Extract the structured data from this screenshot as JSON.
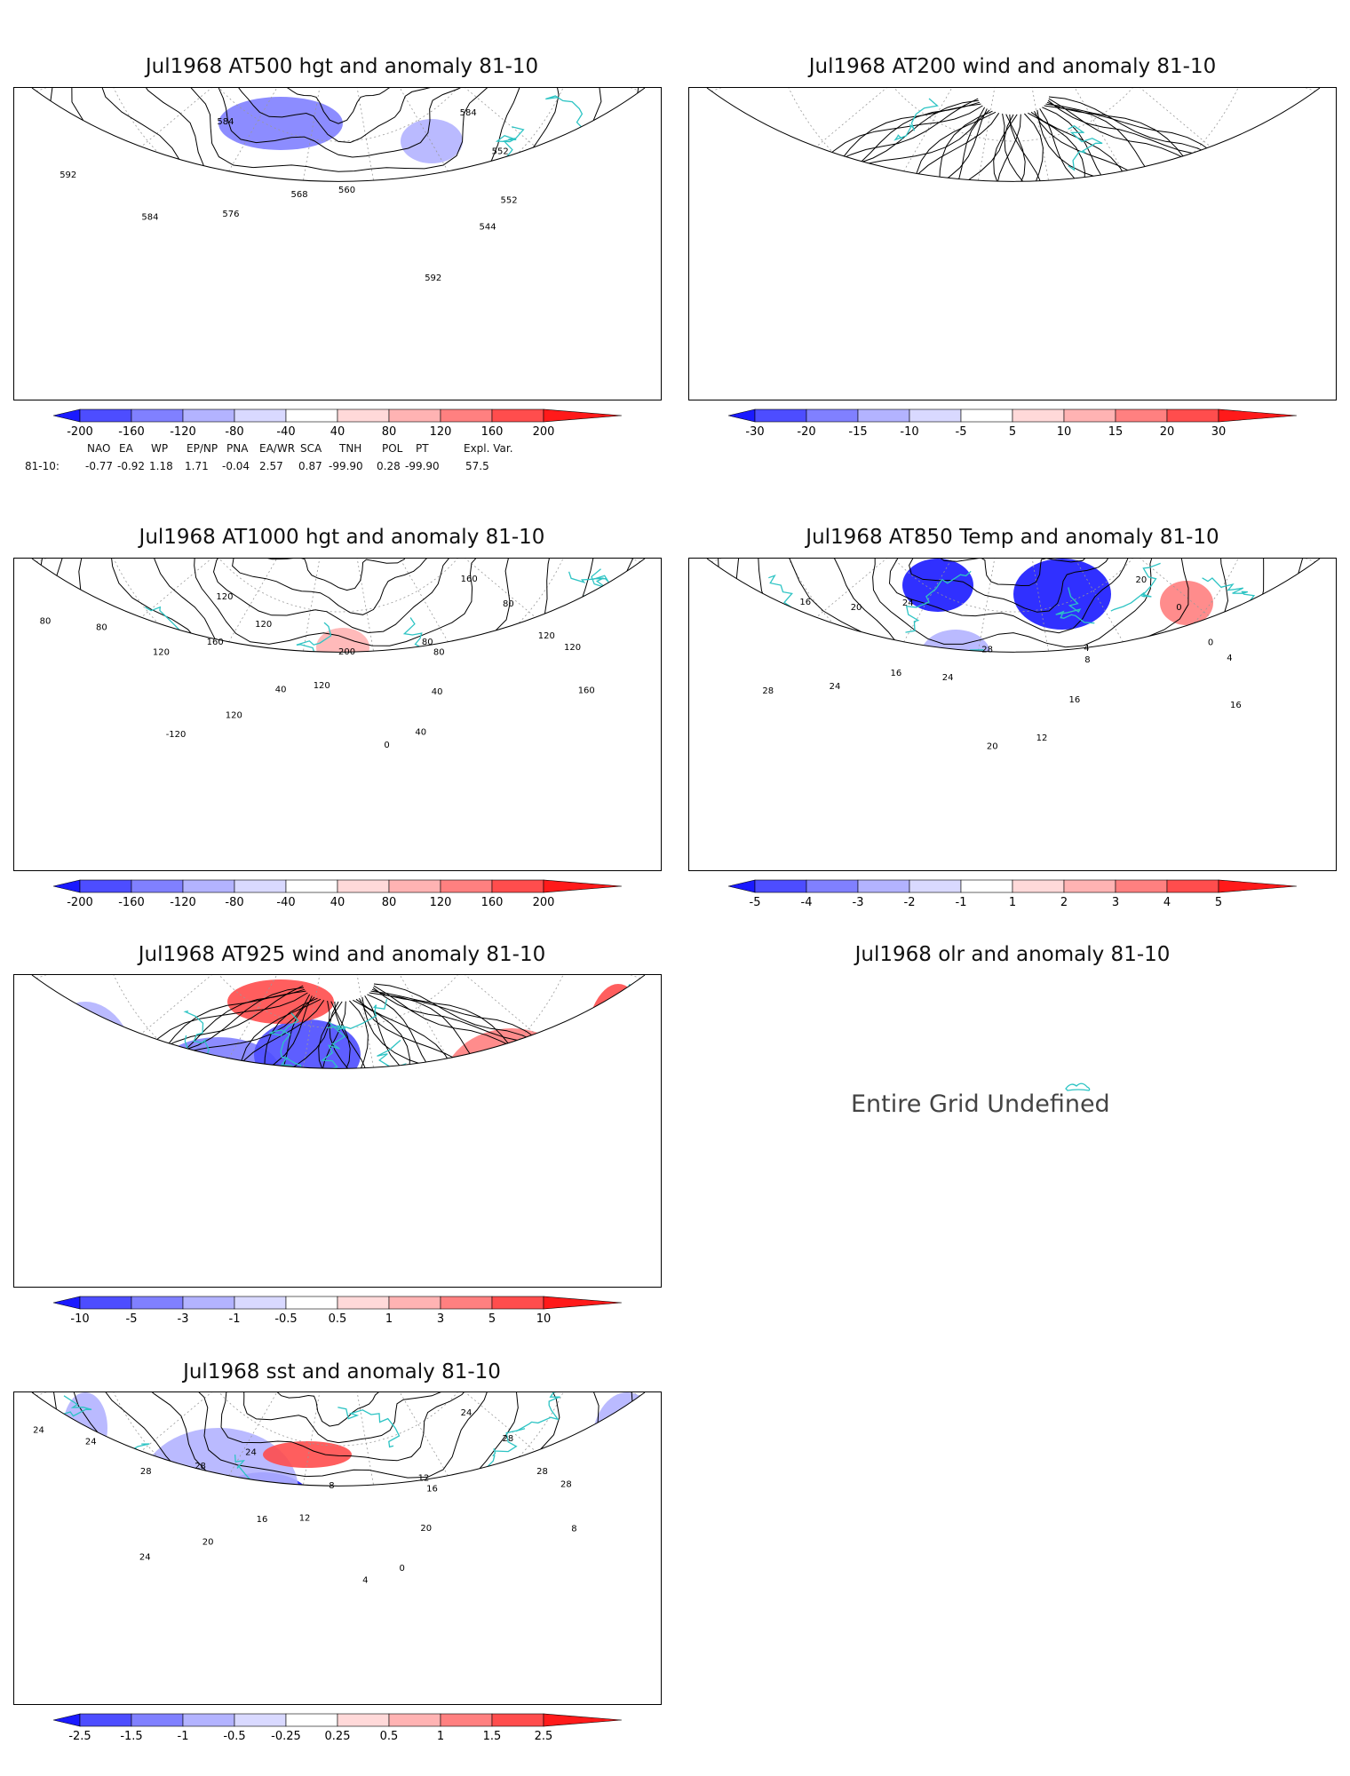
{
  "panels": [
    {
      "id": "at500",
      "title": "Jul1968 AT500 hgt and anomaly 81-10",
      "ticks": [
        "-200",
        "-160",
        "-120",
        "-80",
        "-40",
        "40",
        "80",
        "120",
        "160",
        "200"
      ],
      "labels": [
        "584",
        "552",
        "552",
        "544",
        "592",
        "560",
        "568",
        "576",
        "584",
        "592",
        "584"
      ]
    },
    {
      "id": "at200",
      "title": "Jul1968 AT200 wind and anomaly 81-10",
      "ticks": [
        "-30",
        "-20",
        "-15",
        "-10",
        "-5",
        "5",
        "10",
        "15",
        "20",
        "30"
      ],
      "labels": []
    },
    {
      "id": "at1000",
      "title": "Jul1968 AT1000 hgt and anomaly 81-10",
      "ticks": [
        "-200",
        "-160",
        "-120",
        "-80",
        "-40",
        "40",
        "80",
        "120",
        "160",
        "200"
      ],
      "labels": [
        "160",
        "80",
        "120",
        "120",
        "160",
        "80",
        "80",
        "40",
        "40",
        "0",
        "200",
        "120",
        "40",
        "120",
        "-120",
        "120",
        "160",
        "120",
        "80",
        "80",
        "120"
      ]
    },
    {
      "id": "at850",
      "title": "Jul1968 AT850 Temp and anomaly 81-10",
      "ticks": [
        "-5",
        "-4",
        "-3",
        "-2",
        "-1",
        "1",
        "2",
        "3",
        "4",
        "5"
      ],
      "labels": [
        "20",
        "0",
        "0",
        "4",
        "16",
        "4",
        "8",
        "16",
        "12",
        "20",
        "28",
        "24",
        "16",
        "24",
        "28",
        "24",
        "20",
        "16"
      ]
    },
    {
      "id": "at925",
      "title": "Jul1968 AT925 wind and anomaly 81-10",
      "ticks": [
        "-10",
        "-5",
        "-3",
        "-1",
        "-0.5",
        "0.5",
        "1",
        "3",
        "5",
        "10"
      ],
      "labels": []
    },
    {
      "id": "olr",
      "title": "Jul1968 olr and anomaly 81-10",
      "message": "Entire Grid Undefined"
    },
    {
      "id": "sst",
      "title": "Jul1968 sst and anomaly 81-10",
      "ticks": [
        "-2.5",
        "-1.5",
        "-1",
        "-0.5",
        "-0.25",
        "0.25",
        "0.5",
        "1",
        "1.5",
        "2.5"
      ],
      "labels": [
        "24",
        "28",
        "28",
        "28",
        "8",
        "12",
        "16",
        "20",
        "0",
        "4",
        "8",
        "12",
        "16",
        "20",
        "24",
        "24",
        "28",
        "28",
        "24",
        "24"
      ]
    }
  ],
  "teleconnection": {
    "header": [
      "NAO",
      "EA",
      "WP",
      "EP/NP",
      "PNA",
      "EA/WR",
      "SCA",
      "TNH",
      "POL",
      "PT",
      "Expl. Var."
    ],
    "row_label": "81-10:",
    "values": [
      "-0.77",
      "-0.92",
      "1.18",
      "1.71",
      "-0.04",
      "2.57",
      "0.87",
      "-99.90",
      "0.28",
      "-99.90",
      "57.5"
    ]
  },
  "colors": {
    "coast": "#2ec4c4",
    "contour": "#000000",
    "neg": [
      "#1a1aff",
      "#4d4dff",
      "#8080ff",
      "#b3b3ff",
      "#d9d9ff"
    ],
    "pos": [
      "#ffd9d9",
      "#ffb3b3",
      "#ff8080",
      "#ff4d4d",
      "#ff1a1a"
    ]
  }
}
